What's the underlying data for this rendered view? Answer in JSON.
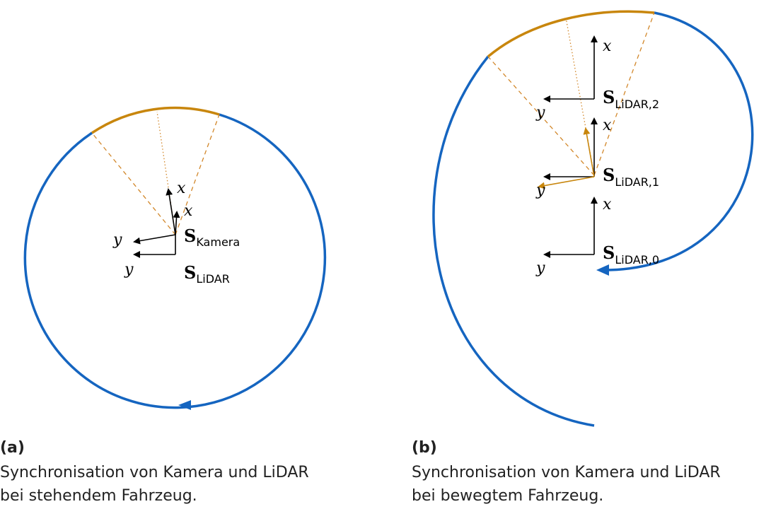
{
  "panels": [
    {
      "label": "(a)",
      "caption": [
        "Synchronisation von Kamera und LiDAR",
        "bei stehendem Fahrzeug."
      ],
      "frames": [
        {
          "name": "S",
          "subscript": "Kamera",
          "x_axis": "x",
          "y_axis": "y",
          "x_axis_2": "x"
        },
        {
          "name": "S",
          "subscript": "LiDAR",
          "y_axis": "y"
        }
      ]
    },
    {
      "label": "(b)",
      "caption": [
        "Synchronisation von Kamera und LiDAR",
        "bei bewegtem Fahrzeug."
      ],
      "frames": [
        {
          "name": "S",
          "subscript": "LiDAR,2",
          "x_axis": "x",
          "y_axis": "y"
        },
        {
          "name": "S",
          "subscript": "LiDAR,1",
          "x_axis": "x",
          "y_axis": "y"
        },
        {
          "name": "S",
          "subscript": "LiDAR,0",
          "x_axis": "x",
          "y_axis": "y"
        }
      ]
    }
  ]
}
